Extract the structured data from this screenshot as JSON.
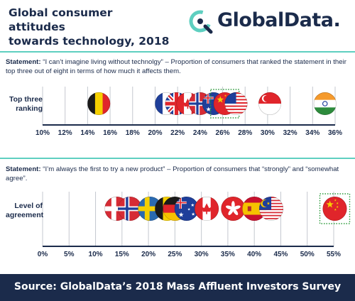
{
  "header": {
    "title_line1": "Global consumer attitudes",
    "title_line2": "towards technology, 2018",
    "logo_text": "GlobalData."
  },
  "colors": {
    "navy": "#1b2b4b",
    "teal": "#5ecfc0",
    "highlight_dots": "#2a9a3a"
  },
  "statements": [
    {
      "prefix": "Statement:",
      "quote": "“I can’t imagine living without technolgy”",
      "rest": " – Proportion of consumers that ranked the statement in their top three out of eight in terms of how much it affects them."
    },
    {
      "prefix": "Statement:",
      "quote": "“I’m always the first to try a new product”",
      "rest": " – Proportion of consumers that “strongly” and “somewhat agree”."
    }
  ],
  "chart_data": [
    {
      "type": "scatter",
      "row_label": [
        "Top three",
        "ranking"
      ],
      "x_ticks": [
        "10%",
        "12%",
        "14%",
        "16%",
        "18%",
        "20%",
        "22%",
        "24%",
        "26%",
        "28%",
        "30%",
        "32%",
        "34%",
        "36%"
      ],
      "xlim": [
        10,
        36
      ],
      "points": [
        {
          "flag": "belgium",
          "x": 15.0
        },
        {
          "flag": "france",
          "x": 21.0
        },
        {
          "flag": "uk",
          "x": 21.9
        },
        {
          "flag": "canada",
          "x": 22.9
        },
        {
          "flag": "norway",
          "x": 24.0
        },
        {
          "flag": "australia",
          "x": 25.2
        },
        {
          "flag": "china",
          "x": 26.2
        },
        {
          "flag": "usa",
          "x": 27.2
        },
        {
          "flag": "singapore",
          "x": 30.2
        },
        {
          "flag": "india",
          "x": 35.1
        }
      ],
      "highlight": "china"
    },
    {
      "type": "scatter",
      "row_label": [
        "Level of",
        "agreement"
      ],
      "x_ticks": [
        "0%",
        "5%",
        "10%",
        "15%",
        "20%",
        "25%",
        "30%",
        "35%",
        "40%",
        "45%",
        "50%",
        "55%"
      ],
      "xlim": [
        0,
        55
      ],
      "points": [
        {
          "flag": "denmark",
          "x": 14.0
        },
        {
          "flag": "norway",
          "x": 16.5
        },
        {
          "flag": "sweden",
          "x": 20.3
        },
        {
          "flag": "belgium",
          "x": 23.5
        },
        {
          "flag": "germany",
          "x": 25.0
        },
        {
          "flag": "australia",
          "x": 27.2
        },
        {
          "flag": "canada",
          "x": 31.0
        },
        {
          "flag": "hongkong",
          "x": 36.0
        },
        {
          "flag": "spain",
          "x": 40.0
        },
        {
          "flag": "malaysia",
          "x": 43.2
        },
        {
          "flag": "china",
          "x": 55.2
        }
      ],
      "highlight": "china"
    }
  ],
  "footer": {
    "source": "Source:  GlobalData’s 2018 Mass Affluent Investors Survey"
  }
}
